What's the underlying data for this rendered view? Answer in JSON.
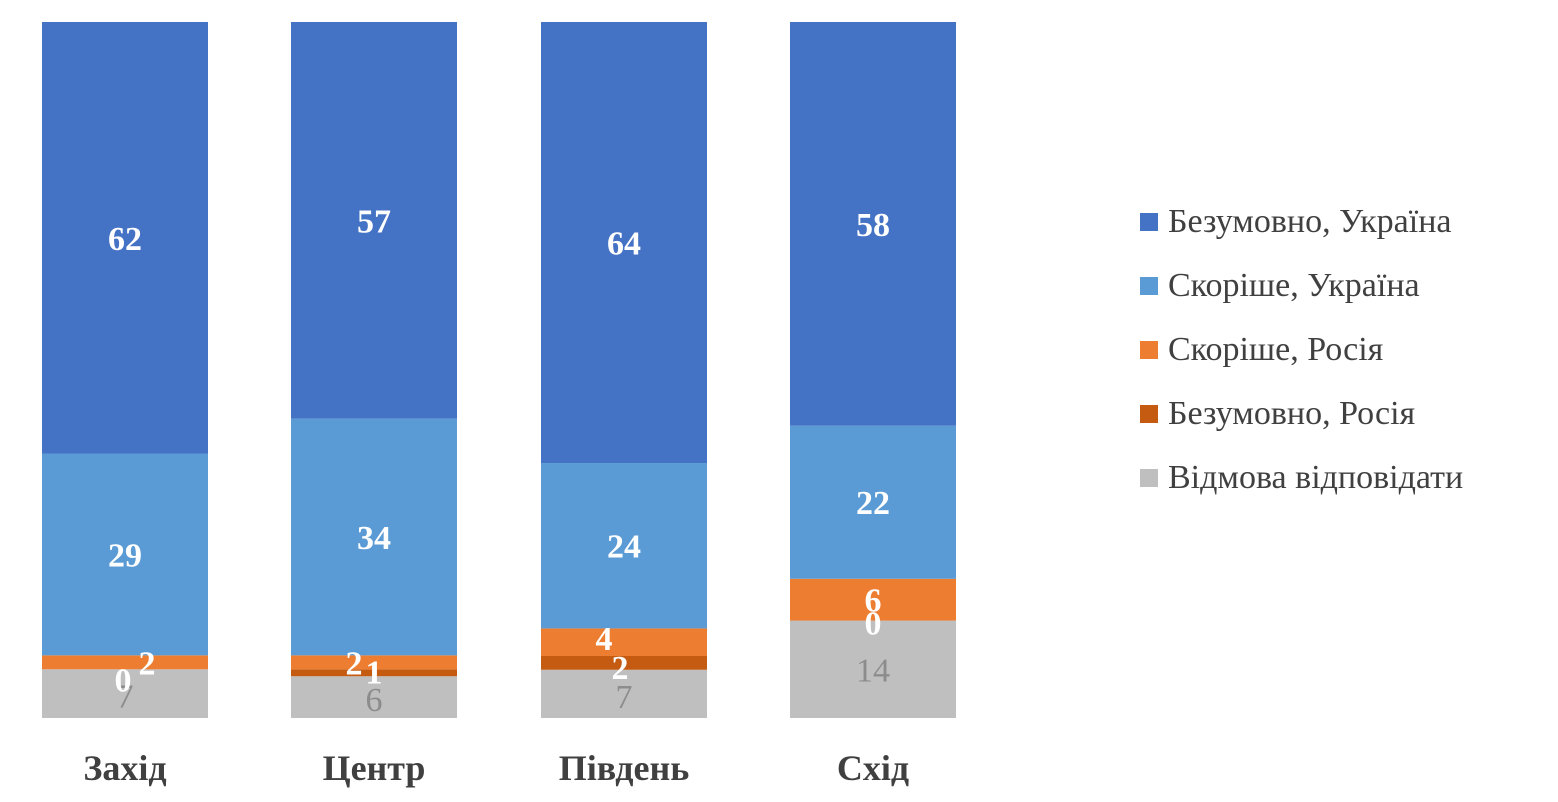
{
  "chart_data": {
    "type": "stacked-bar",
    "title": "",
    "xlabel": "",
    "ylabel": "",
    "ylim": [
      0,
      100
    ],
    "categories": [
      "Захід",
      "Центр",
      "Південь",
      "Схід"
    ],
    "series": [
      {
        "name": "Відмова відповідати",
        "values": [
          7,
          6,
          7,
          14
        ],
        "color": "#bfbfbf",
        "label_style": "grey"
      },
      {
        "name": "Безумовно, Росія",
        "values": [
          0,
          1,
          2,
          0
        ],
        "color": "#c55a11",
        "label_style": "white"
      },
      {
        "name": "Скоріше, Росія",
        "values": [
          2,
          2,
          4,
          6
        ],
        "color": "#ed7d31",
        "label_style": "white"
      },
      {
        "name": "Скоріше, Україна",
        "values": [
          29,
          34,
          24,
          22
        ],
        "color": "#5b9bd5",
        "label_style": "white"
      },
      {
        "name": "Безумовно, Україна",
        "values": [
          62,
          57,
          64,
          58
        ],
        "color": "#4472c4",
        "label_style": "white"
      }
    ],
    "legend_order": [
      "Безумовно, Україна",
      "Скоріше, Україна",
      "Скоріше, Росія",
      "Безумовно, Росія",
      "Відмова відповідати"
    ],
    "legend_position": "right"
  }
}
